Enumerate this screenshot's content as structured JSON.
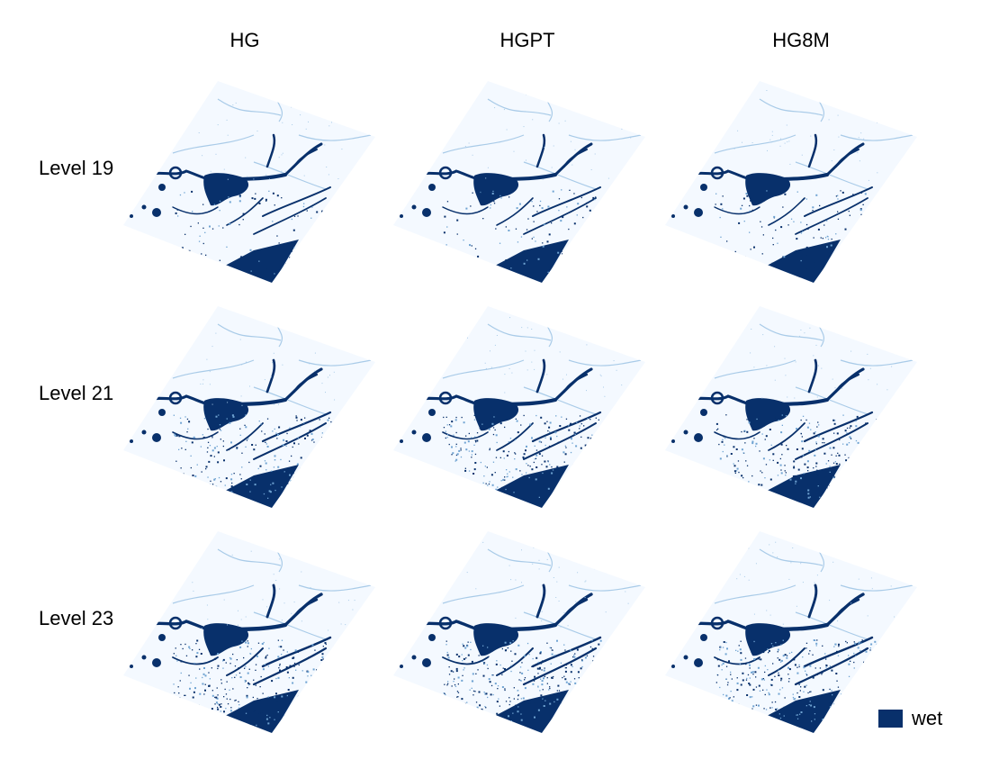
{
  "columns": [
    "HG",
    "HGPT",
    "HG8M"
  ],
  "rows": [
    "Level 19",
    "Level 21",
    "Level 23"
  ],
  "legend": {
    "label": "wet",
    "color": "#08306b"
  },
  "colors": {
    "dry": "#f4f9ff",
    "wet": "#08306b",
    "speckle": "#6fa3d2",
    "faint": "#a9cbe8"
  },
  "chart_data": {
    "type": "heatmap",
    "layout": "3x3 small multiples",
    "categories": {
      "columns": [
        "HG",
        "HGPT",
        "HG8M"
      ],
      "rows": [
        "Level 19",
        "Level 21",
        "Level 23"
      ]
    },
    "classes": [
      "dry",
      "wet"
    ],
    "legend_entries": [
      "wet"
    ],
    "legend_placement": "bottom-right"
  }
}
